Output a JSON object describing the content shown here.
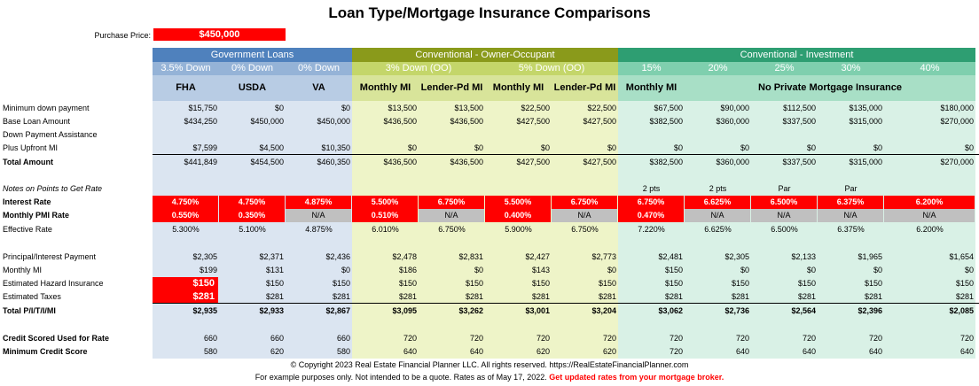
{
  "title": "Loan Type/Mortgage Insurance Comparisons",
  "purchase_price": {
    "label": "Purchase Price:",
    "value": "$450,000"
  },
  "groups": [
    {
      "label": "Government Loans",
      "color": "#4f81bd",
      "span": [
        0,
        3
      ]
    },
    {
      "label": "Conventional - Owner-Occupant",
      "color": "#8a9a1b",
      "span": [
        3,
        7
      ]
    },
    {
      "label": "Conventional - Investment",
      "color": "#2e9e72",
      "span": [
        7,
        12
      ]
    }
  ],
  "sub_headers": [
    "3.5% Down",
    "0% Down",
    "0% Down",
    "3% Down (OO)",
    "",
    "5% Down (OO)",
    "",
    "15%",
    "20%",
    "25%",
    "30%",
    "40%"
  ],
  "col_headers": [
    "FHA",
    "USDA",
    "VA",
    "Monthly MI",
    "Lender-Pd MI",
    "Monthly MI",
    "Lender-Pd MI",
    "Monthly MI"
  ],
  "no_pmi_header": "No Private Mortgage Insurance",
  "rows": [
    {
      "label": "Minimum down payment",
      "values": [
        "$15,750",
        "$0",
        "$0",
        "$13,500",
        "$13,500",
        "$22,500",
        "$22,500",
        "$67,500",
        "$90,000",
        "$112,500",
        "$135,000",
        "$180,000"
      ]
    },
    {
      "label": "Base Loan Amount",
      "values": [
        "$434,250",
        "$450,000",
        "$450,000",
        "$436,500",
        "$436,500",
        "$427,500",
        "$427,500",
        "$382,500",
        "$360,000",
        "$337,500",
        "$315,000",
        "$270,000"
      ]
    },
    {
      "label": "Down Payment Assistance",
      "values": [
        "",
        "",
        "",
        "",
        "",
        "",
        "",
        "",
        "",
        "",
        "",
        ""
      ]
    },
    {
      "label": "Plus Upfront MI",
      "values": [
        "$7,599",
        "$4,500",
        "$10,350",
        "$0",
        "$0",
        "$0",
        "$0",
        "$0",
        "$0",
        "$0",
        "$0",
        "$0"
      ]
    },
    {
      "label": "Total Amount",
      "values": [
        "$441,849",
        "$454,500",
        "$460,350",
        "$436,500",
        "$436,500",
        "$427,500",
        "$427,500",
        "$382,500",
        "$360,000",
        "$337,500",
        "$315,000",
        "$270,000"
      ]
    },
    {
      "label": "",
      "values": []
    },
    {
      "label": "Notes on Points to Get Rate",
      "values": [
        "",
        "",
        "",
        "",
        "",
        "",
        "",
        "2 pts",
        "2 pts",
        "Par",
        "Par",
        ""
      ]
    },
    {
      "label": "Interest Rate",
      "values": [
        "4.750%",
        "4.750%",
        "4.875%",
        "5.500%",
        "6.750%",
        "5.500%",
        "6.750%",
        "6.750%",
        "6.625%",
        "6.500%",
        "6.375%",
        "6.200%"
      ]
    },
    {
      "label": "Monthly PMI Rate",
      "values": [
        "0.550%",
        "0.350%",
        "N/A",
        "0.510%",
        "N/A",
        "0.400%",
        "N/A",
        "0.470%",
        "N/A",
        "N/A",
        "N/A",
        "N/A"
      ]
    },
    {
      "label": "Effective Rate",
      "values": [
        "5.300%",
        "5.100%",
        "4.875%",
        "6.010%",
        "6.750%",
        "5.900%",
        "6.750%",
        "7.220%",
        "6.625%",
        "6.500%",
        "6.375%",
        "6.200%"
      ]
    },
    {
      "label": "",
      "values": []
    },
    {
      "label": "Principal/Interest Payment",
      "values": [
        "$2,305",
        "$2,371",
        "$2,436",
        "$2,478",
        "$2,831",
        "$2,427",
        "$2,773",
        "$2,481",
        "$2,305",
        "$2,133",
        "$1,965",
        "$1,654"
      ]
    },
    {
      "label": "Monthly MI",
      "values": [
        "$199",
        "$131",
        "$0",
        "$186",
        "$0",
        "$143",
        "$0",
        "$150",
        "$0",
        "$0",
        "$0",
        "$0"
      ]
    },
    {
      "label": "Estimated Hazard Insurance",
      "values": [
        "$150",
        "$150",
        "$150",
        "$150",
        "$150",
        "$150",
        "$150",
        "$150",
        "$150",
        "$150",
        "$150",
        "$150"
      ]
    },
    {
      "label": "Estimated Taxes",
      "values": [
        "$281",
        "$281",
        "$281",
        "$281",
        "$281",
        "$281",
        "$281",
        "$281",
        "$281",
        "$281",
        "$281",
        "$281"
      ]
    },
    {
      "label": "Total P/I/T/I/MI",
      "values": [
        "$2,935",
        "$2,933",
        "$2,867",
        "$3,095",
        "$3,262",
        "$3,001",
        "$3,204",
        "$3,062",
        "$2,736",
        "$2,564",
        "$2,396",
        "$2,085"
      ]
    },
    {
      "label": "",
      "values": []
    },
    {
      "label": "Credit Scored Used for Rate",
      "values": [
        "660",
        "660",
        "660",
        "720",
        "720",
        "720",
        "720",
        "720",
        "720",
        "720",
        "720",
        "720"
      ]
    },
    {
      "label": "Minimum Credit Score",
      "values": [
        "580",
        "620",
        "580",
        "640",
        "640",
        "620",
        "620",
        "720",
        "640",
        "640",
        "640",
        "640"
      ]
    }
  ],
  "footer": {
    "line1": "© Copyright 2023 Real Estate Financial Planner LLC. All rights reserved. https://RealEstateFinancialPlanner.com",
    "line2": "For example purposes only. Not intended to be a quote. Rates as of May 17, 2022.",
    "line2_highlight": "Get updated rates from your mortgage broker."
  },
  "colors": {
    "gov_bg": "#dbe5f1",
    "conv_bg": "#eef4c8",
    "inv_bg": "#d9f1e6",
    "red": "#ff0000",
    "gray": "#c0c0c0"
  }
}
